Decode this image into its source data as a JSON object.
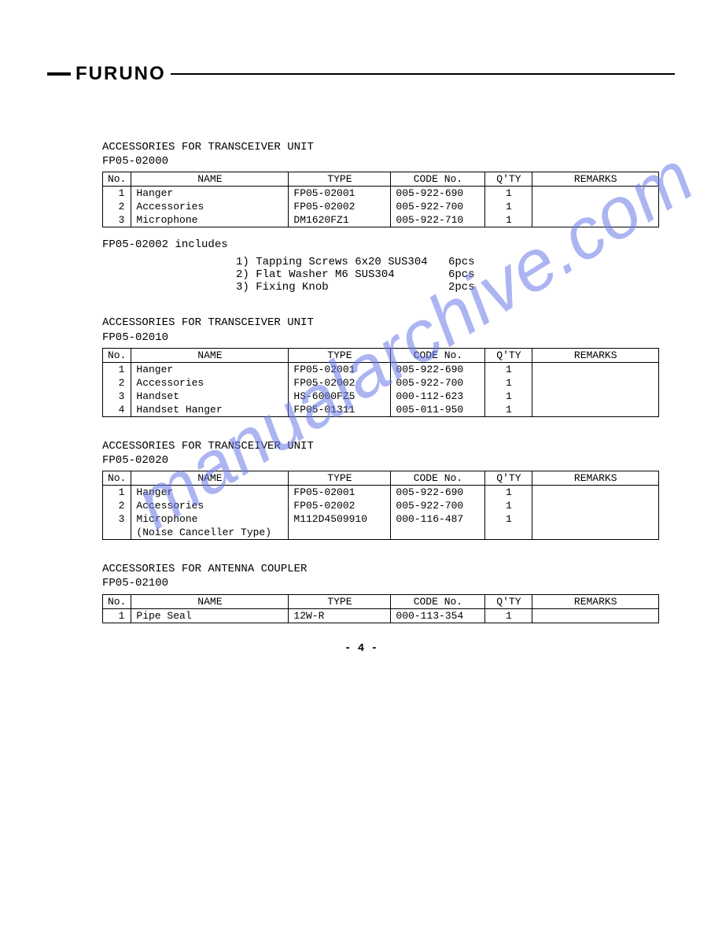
{
  "brand": "FURUNO",
  "watermark": "manualarchive.com",
  "page_number": "- 4 -",
  "columns": [
    "No.",
    "NAME",
    "TYPE",
    "CODE No.",
    "Q'TY",
    "REMARKS"
  ],
  "sections": [
    {
      "title_line1": "ACCESSORIES FOR TRANSCEIVER UNIT",
      "title_line2": "FP05-02000",
      "rows": [
        {
          "no": "1",
          "name": "Hanger",
          "type": "FP05-02001",
          "code": "005-922-690",
          "qty": "1",
          "remarks": ""
        },
        {
          "no": "2",
          "name": "Accessories",
          "type": "FP05-02002",
          "code": "005-922-700",
          "qty": "1",
          "remarks": ""
        },
        {
          "no": "3",
          "name": "Microphone",
          "type": "DM1620FZ1",
          "code": "005-922-710",
          "qty": "1",
          "remarks": ""
        }
      ]
    },
    {
      "title_line1": "ACCESSORIES FOR TRANSCEIVER UNIT",
      "title_line2": "FP05-02010",
      "rows": [
        {
          "no": "1",
          "name": "Hanger",
          "type": "FP05-02001",
          "code": "005-922-690",
          "qty": "1",
          "remarks": ""
        },
        {
          "no": "2",
          "name": "Accessories",
          "type": "FP05-02002",
          "code": "005-922-700",
          "qty": "1",
          "remarks": ""
        },
        {
          "no": "3",
          "name": "Handset",
          "type": "HS-6000FZ5",
          "code": "000-112-623",
          "qty": "1",
          "remarks": ""
        },
        {
          "no": "4",
          "name": "Handset Hanger",
          "type": "FP05-01311",
          "code": "005-011-950",
          "qty": "1",
          "remarks": ""
        }
      ]
    },
    {
      "title_line1": "ACCESSORIES FOR TRANSCEIVER UNIT",
      "title_line2": "FP05-02020",
      "rows": [
        {
          "no": "1",
          "name": "Hanger",
          "type": "FP05-02001",
          "code": "005-922-690",
          "qty": "1",
          "remarks": ""
        },
        {
          "no": "2",
          "name": "Accessories",
          "type": "FP05-02002",
          "code": "005-922-700",
          "qty": "1",
          "remarks": ""
        },
        {
          "no": "3",
          "name": "Microphone",
          "type": "M112D4509910",
          "code": "000-116-487",
          "qty": "1",
          "remarks": ""
        },
        {
          "no": "",
          "name": "(Noise Canceller Type)",
          "type": "",
          "code": "",
          "qty": "",
          "remarks": ""
        }
      ]
    },
    {
      "title_line1": "ACCESSORIES FOR ANTENNA COUPLER",
      "title_line2": "FP05-02100",
      "rows": [
        {
          "no": "1",
          "name": "Pipe Seal",
          "type": "12W-R",
          "code": "000-113-354",
          "qty": "1",
          "remarks": ""
        }
      ]
    }
  ],
  "includes": {
    "label": "FP05-02002 includes",
    "items": [
      {
        "desc": "1) Tapping Screws 6x20 SUS304",
        "qty": "6pcs"
      },
      {
        "desc": "2) Flat Washer M6 SUS304",
        "qty": "6pcs"
      },
      {
        "desc": "3) Fixing Knob",
        "qty": "2pcs"
      }
    ]
  }
}
